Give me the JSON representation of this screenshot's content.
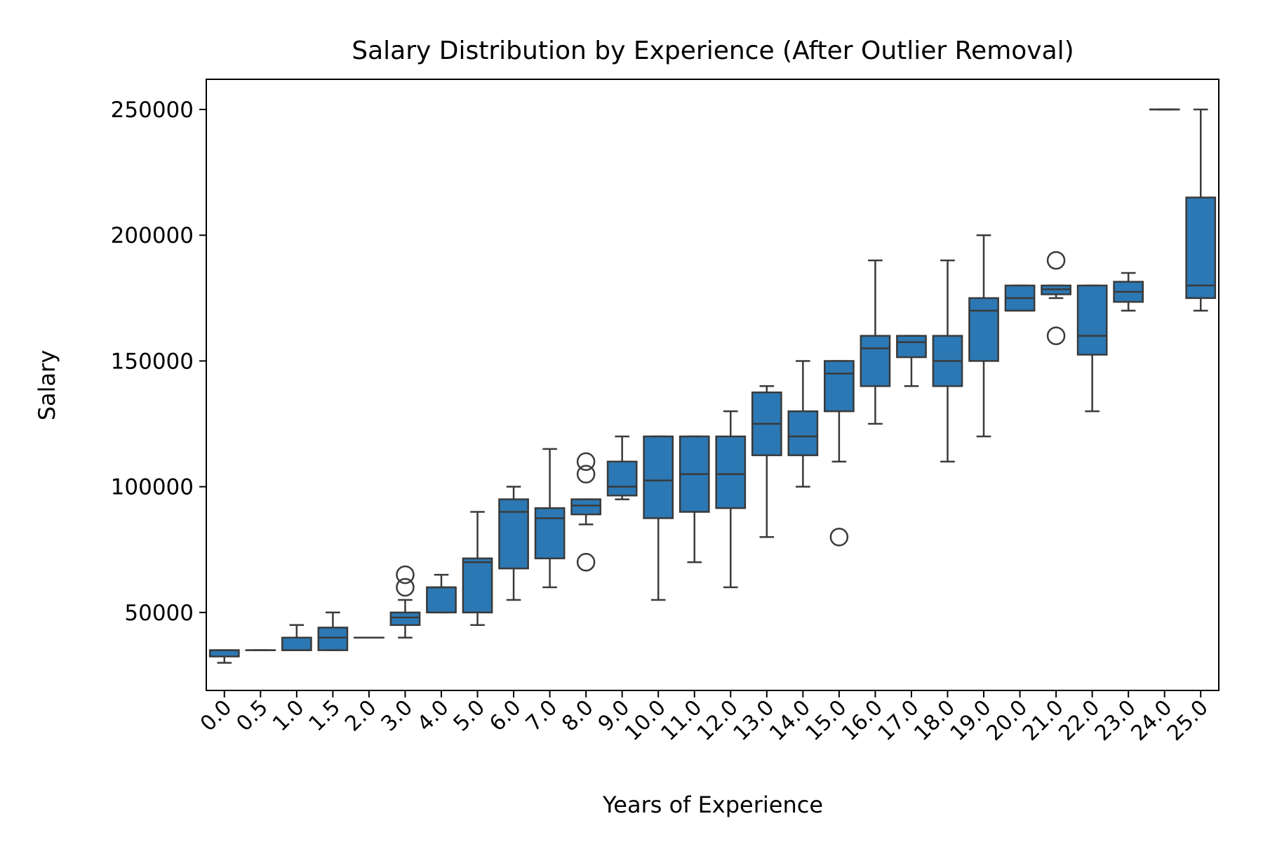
{
  "chart_data": {
    "type": "box",
    "title": "Salary Distribution by Experience (After Outlier Removal)",
    "xlabel": "Years of Experience",
    "ylabel": "Salary",
    "ylim": [
      19000,
      262000
    ],
    "yticks": [
      50000,
      100000,
      150000,
      200000,
      250000
    ],
    "box_color": "#2b78b4",
    "line_color": "#3a3a3a",
    "grid": false,
    "categories": [
      "0.0",
      "0.5",
      "1.0",
      "1.5",
      "2.0",
      "3.0",
      "4.0",
      "5.0",
      "6.0",
      "7.0",
      "8.0",
      "9.0",
      "10.0",
      "11.0",
      "12.0",
      "13.0",
      "14.0",
      "15.0",
      "16.0",
      "17.0",
      "18.0",
      "19.0",
      "20.0",
      "21.0",
      "22.0",
      "23.0",
      "24.0",
      "25.0"
    ],
    "boxes": [
      {
        "whislo": 30000,
        "q1": 32500,
        "med": 35000,
        "q3": 35000,
        "whishi": 35000,
        "fliers": []
      },
      {
        "whislo": 35000,
        "q1": 35000,
        "med": 35000,
        "q3": 35000,
        "whishi": 35000,
        "fliers": []
      },
      {
        "whislo": 35000,
        "q1": 35000,
        "med": 35000,
        "q3": 40000,
        "whishi": 45000,
        "fliers": []
      },
      {
        "whislo": 35000,
        "q1": 35000,
        "med": 40000,
        "q3": 44000,
        "whishi": 50000,
        "fliers": []
      },
      {
        "whislo": 40000,
        "q1": 40000,
        "med": 40000,
        "q3": 40000,
        "whishi": 40000,
        "fliers": []
      },
      {
        "whislo": 40000,
        "q1": 45000,
        "med": 48000,
        "q3": 50000,
        "whishi": 55000,
        "fliers": [
          60000,
          65000
        ]
      },
      {
        "whislo": 50000,
        "q1": 50000,
        "med": 60000,
        "q3": 60000,
        "whishi": 65000,
        "fliers": []
      },
      {
        "whislo": 45000,
        "q1": 50000,
        "med": 70000,
        "q3": 71500,
        "whishi": 90000,
        "fliers": []
      },
      {
        "whislo": 55000,
        "q1": 67500,
        "med": 90000,
        "q3": 95000,
        "whishi": 100000,
        "fliers": []
      },
      {
        "whislo": 60000,
        "q1": 71500,
        "med": 87500,
        "q3": 91500,
        "whishi": 115000,
        "fliers": []
      },
      {
        "whislo": 85000,
        "q1": 89000,
        "med": 92500,
        "q3": 95000,
        "whishi": 95000,
        "fliers": [
          70000,
          105000,
          110000
        ]
      },
      {
        "whislo": 95000,
        "q1": 96500,
        "med": 100000,
        "q3": 110000,
        "whishi": 120000,
        "fliers": []
      },
      {
        "whislo": 55000,
        "q1": 87500,
        "med": 102500,
        "q3": 120000,
        "whishi": 120000,
        "fliers": []
      },
      {
        "whislo": 70000,
        "q1": 90000,
        "med": 105000,
        "q3": 120000,
        "whishi": 120000,
        "fliers": []
      },
      {
        "whislo": 60000,
        "q1": 91500,
        "med": 105000,
        "q3": 120000,
        "whishi": 130000,
        "fliers": []
      },
      {
        "whislo": 80000,
        "q1": 112500,
        "med": 125000,
        "q3": 137500,
        "whishi": 140000,
        "fliers": []
      },
      {
        "whislo": 100000,
        "q1": 112500,
        "med": 120000,
        "q3": 130000,
        "whishi": 150000,
        "fliers": []
      },
      {
        "whislo": 110000,
        "q1": 130000,
        "med": 145000,
        "q3": 150000,
        "whishi": 150000,
        "fliers": [
          80000
        ]
      },
      {
        "whislo": 125000,
        "q1": 140000,
        "med": 155000,
        "q3": 160000,
        "whishi": 190000,
        "fliers": []
      },
      {
        "whislo": 140000,
        "q1": 151500,
        "med": 157500,
        "q3": 160000,
        "whishi": 160000,
        "fliers": []
      },
      {
        "whislo": 110000,
        "q1": 140000,
        "med": 150000,
        "q3": 160000,
        "whishi": 190000,
        "fliers": []
      },
      {
        "whislo": 120000,
        "q1": 150000,
        "med": 170000,
        "q3": 175000,
        "whishi": 200000,
        "fliers": []
      },
      {
        "whislo": 170000,
        "q1": 170000,
        "med": 175000,
        "q3": 180000,
        "whishi": 180000,
        "fliers": []
      },
      {
        "whislo": 175000,
        "q1": 176500,
        "med": 178500,
        "q3": 180000,
        "whishi": 180000,
        "fliers": [
          160000,
          190000
        ]
      },
      {
        "whislo": 130000,
        "q1": 152500,
        "med": 160000,
        "q3": 180000,
        "whishi": 180000,
        "fliers": []
      },
      {
        "whislo": 170000,
        "q1": 173500,
        "med": 177500,
        "q3": 181500,
        "whishi": 185000,
        "fliers": []
      },
      {
        "whislo": 250000,
        "q1": 250000,
        "med": 250000,
        "q3": 250000,
        "whishi": 250000,
        "fliers": []
      },
      {
        "whislo": 170000,
        "q1": 175000,
        "med": 180000,
        "q3": 215000,
        "whishi": 250000,
        "fliers": []
      }
    ]
  }
}
